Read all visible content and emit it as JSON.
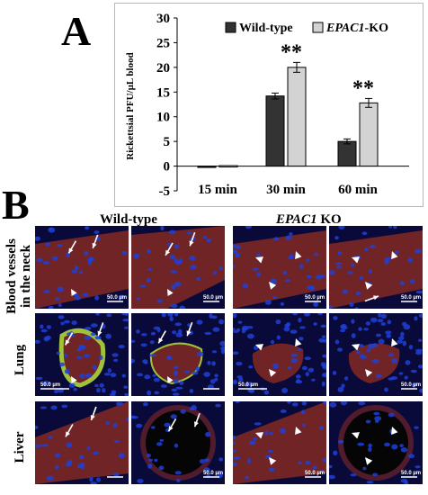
{
  "panel_a_letter": "A",
  "panel_b_letter": "B",
  "chart_data": {
    "type": "bar",
    "categories": [
      "15 min",
      "30 min",
      "60 min"
    ],
    "series": [
      {
        "name": "Wild-type",
        "values": [
          0.0,
          14.2,
          5.0
        ],
        "errors": [
          0.1,
          0.6,
          0.5
        ],
        "color": "#333333"
      },
      {
        "name": "EPAC1-KO",
        "values": [
          0.1,
          20.0,
          12.8
        ],
        "errors": [
          0.1,
          1.0,
          0.9
        ],
        "color": "#d3d3d3"
      }
    ],
    "ylabel": "Rickettsial PFU/µL blood",
    "xlabel": "",
    "ylim": [
      -5,
      30
    ],
    "yticks": [
      -5,
      0,
      5,
      10,
      15,
      20,
      25,
      30
    ],
    "significance": [
      {
        "category": "30 min",
        "series": "EPAC1-KO",
        "label": "**"
      },
      {
        "category": "60 min",
        "series": "EPAC1-KO",
        "label": "**"
      }
    ],
    "legend": {
      "placement": "top-right",
      "entries": [
        {
          "prefix": "Wild-type",
          "italic": "",
          "suffix": ""
        },
        {
          "prefix": "",
          "italic": "EPAC1",
          "suffix": "-KO"
        }
      ]
    }
  },
  "panel_b": {
    "column_labels": {
      "wild_type": "Wild-type",
      "ko_italic": "EPAC1",
      "ko_suffix": " KO"
    },
    "row_labels": [
      "Blood vessels in the neck",
      "Lung",
      "Liver"
    ],
    "row_label_lines": [
      [
        "Blood vessels",
        "in the neck"
      ],
      [
        "Lung"
      ],
      [
        "Liver"
      ]
    ],
    "scale_bar_text": "50.0 µm",
    "colors": {
      "nuclei": "#1f3fd8",
      "tissue_red": "#8a2a22",
      "fitc_green": "#9fc23a",
      "background": "#0a0a3a"
    }
  }
}
